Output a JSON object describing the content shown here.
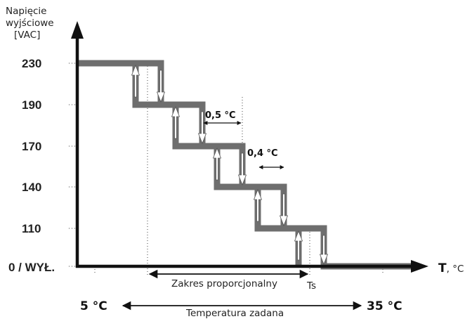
{
  "axis": {
    "y_caption": [
      "Napięcie",
      "wyjściowe",
      "[VAC]"
    ],
    "x_caption_bold": "T",
    "x_caption_unit": ", °C",
    "zero_label": "0  /  WYŁ."
  },
  "y_levels": [
    "230",
    "190",
    "170",
    "140",
    "110"
  ],
  "deltas": {
    "first": "0,5 °C",
    "second": "0,4 °C"
  },
  "bottom": {
    "range_label": "Zakres proporcjonalny",
    "ts_label": "Ts",
    "temp_min": "5 °C",
    "temp_max": "35 °C",
    "temp_label": "Temperatura zadana"
  },
  "colors": {
    "step_line": "#6e6e6e",
    "axis": "#111111"
  }
}
